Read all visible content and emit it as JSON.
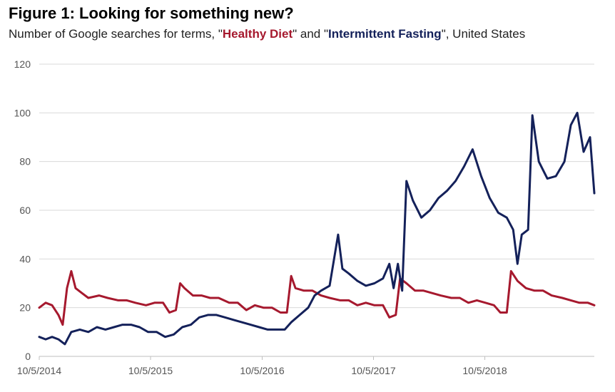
{
  "figure": {
    "title": "Figure 1:  Looking for something new?",
    "subtitle_prefix": "Number of Google searches for terms, \"",
    "subtitle_mid": "\" and \"",
    "subtitle_suffix": "\", United States"
  },
  "chart_data": {
    "type": "line",
    "ylim": [
      0,
      120
    ],
    "yticks": [
      0,
      20,
      40,
      60,
      80,
      100,
      120
    ],
    "xticks": [
      "10/5/2014",
      "10/5/2015",
      "10/5/2016",
      "10/5/2017",
      "10/5/2018"
    ],
    "x_range": [
      "2014-10-05",
      "2019-09-29"
    ],
    "grid": "horizontal",
    "series": [
      {
        "name": "Healthy Diet",
        "color": "#a6192e",
        "points": [
          [
            "2014-10-05",
            20
          ],
          [
            "2014-10-26",
            22
          ],
          [
            "2014-11-16",
            21
          ],
          [
            "2014-12-07",
            17
          ],
          [
            "2014-12-21",
            13
          ],
          [
            "2015-01-04",
            28
          ],
          [
            "2015-01-18",
            35
          ],
          [
            "2015-02-01",
            28
          ],
          [
            "2015-02-22",
            26
          ],
          [
            "2015-03-15",
            24
          ],
          [
            "2015-04-19",
            25
          ],
          [
            "2015-05-17",
            24
          ],
          [
            "2015-06-21",
            23
          ],
          [
            "2015-07-19",
            23
          ],
          [
            "2015-08-16",
            22
          ],
          [
            "2015-09-20",
            21
          ],
          [
            "2015-10-18",
            22
          ],
          [
            "2015-11-15",
            22
          ],
          [
            "2015-12-06",
            18
          ],
          [
            "2015-12-27",
            19
          ],
          [
            "2016-01-10",
            30
          ],
          [
            "2016-01-24",
            28
          ],
          [
            "2016-02-21",
            25
          ],
          [
            "2016-03-20",
            25
          ],
          [
            "2016-04-17",
            24
          ],
          [
            "2016-05-15",
            24
          ],
          [
            "2016-06-19",
            22
          ],
          [
            "2016-07-17",
            22
          ],
          [
            "2016-08-14",
            19
          ],
          [
            "2016-09-11",
            21
          ],
          [
            "2016-10-09",
            20
          ],
          [
            "2016-11-06",
            20
          ],
          [
            "2016-12-04",
            18
          ],
          [
            "2016-12-25",
            18
          ],
          [
            "2017-01-08",
            33
          ],
          [
            "2017-01-22",
            28
          ],
          [
            "2017-02-19",
            27
          ],
          [
            "2017-03-19",
            27
          ],
          [
            "2017-04-16",
            25
          ],
          [
            "2017-05-14",
            24
          ],
          [
            "2017-06-18",
            23
          ],
          [
            "2017-07-16",
            23
          ],
          [
            "2017-08-13",
            21
          ],
          [
            "2017-09-10",
            22
          ],
          [
            "2017-10-08",
            21
          ],
          [
            "2017-11-05",
            21
          ],
          [
            "2017-11-26",
            16
          ],
          [
            "2017-12-17",
            17
          ],
          [
            "2017-12-31",
            32
          ],
          [
            "2018-01-21",
            30
          ],
          [
            "2018-02-18",
            27
          ],
          [
            "2018-03-18",
            27
          ],
          [
            "2018-04-15",
            26
          ],
          [
            "2018-05-13",
            25
          ],
          [
            "2018-06-17",
            24
          ],
          [
            "2018-07-15",
            24
          ],
          [
            "2018-08-12",
            22
          ],
          [
            "2018-09-09",
            23
          ],
          [
            "2018-10-07",
            22
          ],
          [
            "2018-11-04",
            21
          ],
          [
            "2018-11-25",
            18
          ],
          [
            "2018-12-16",
            18
          ],
          [
            "2018-12-30",
            35
          ],
          [
            "2019-01-20",
            31
          ],
          [
            "2019-02-17",
            28
          ],
          [
            "2019-03-17",
            27
          ],
          [
            "2019-04-14",
            27
          ],
          [
            "2019-05-12",
            25
          ],
          [
            "2019-06-16",
            24
          ],
          [
            "2019-07-14",
            23
          ],
          [
            "2019-08-11",
            22
          ],
          [
            "2019-09-08",
            22
          ],
          [
            "2019-09-29",
            21
          ]
        ]
      },
      {
        "name": "Intermittent Fasting",
        "color": "#14215a",
        "points": [
          [
            "2014-10-05",
            8
          ],
          [
            "2014-10-26",
            7
          ],
          [
            "2014-11-16",
            8
          ],
          [
            "2014-12-07",
            7
          ],
          [
            "2014-12-28",
            5
          ],
          [
            "2015-01-18",
            10
          ],
          [
            "2015-02-15",
            11
          ],
          [
            "2015-03-15",
            10
          ],
          [
            "2015-04-12",
            12
          ],
          [
            "2015-05-10",
            11
          ],
          [
            "2015-06-07",
            12
          ],
          [
            "2015-07-05",
            13
          ],
          [
            "2015-08-02",
            13
          ],
          [
            "2015-08-30",
            12
          ],
          [
            "2015-09-27",
            10
          ],
          [
            "2015-10-25",
            10
          ],
          [
            "2015-11-22",
            8
          ],
          [
            "2015-12-20",
            9
          ],
          [
            "2016-01-17",
            12
          ],
          [
            "2016-02-14",
            13
          ],
          [
            "2016-03-13",
            16
          ],
          [
            "2016-04-10",
            17
          ],
          [
            "2016-05-08",
            17
          ],
          [
            "2016-06-05",
            16
          ],
          [
            "2016-07-03",
            15
          ],
          [
            "2016-07-31",
            14
          ],
          [
            "2016-08-28",
            13
          ],
          [
            "2016-09-25",
            12
          ],
          [
            "2016-10-23",
            11
          ],
          [
            "2016-11-20",
            11
          ],
          [
            "2016-12-18",
            11
          ],
          [
            "2017-01-08",
            14
          ],
          [
            "2017-02-05",
            17
          ],
          [
            "2017-03-05",
            20
          ],
          [
            "2017-03-26",
            25
          ],
          [
            "2017-04-16",
            27
          ],
          [
            "2017-05-14",
            29
          ],
          [
            "2017-06-11",
            50
          ],
          [
            "2017-06-25",
            36
          ],
          [
            "2017-07-16",
            34
          ],
          [
            "2017-08-13",
            31
          ],
          [
            "2017-09-10",
            29
          ],
          [
            "2017-10-08",
            30
          ],
          [
            "2017-11-05",
            32
          ],
          [
            "2017-11-26",
            38
          ],
          [
            "2017-12-10",
            28
          ],
          [
            "2017-12-24",
            38
          ],
          [
            "2018-01-07",
            27
          ],
          [
            "2018-01-21",
            72
          ],
          [
            "2018-02-11",
            64
          ],
          [
            "2018-03-11",
            57
          ],
          [
            "2018-04-08",
            60
          ],
          [
            "2018-05-06",
            65
          ],
          [
            "2018-06-03",
            68
          ],
          [
            "2018-07-01",
            72
          ],
          [
            "2018-07-29",
            78
          ],
          [
            "2018-08-26",
            85
          ],
          [
            "2018-09-23",
            74
          ],
          [
            "2018-10-21",
            65
          ],
          [
            "2018-11-18",
            59
          ],
          [
            "2018-12-16",
            57
          ],
          [
            "2019-01-06",
            52
          ],
          [
            "2019-01-20",
            38
          ],
          [
            "2019-02-03",
            50
          ],
          [
            "2019-02-24",
            52
          ],
          [
            "2019-03-10",
            99
          ],
          [
            "2019-03-31",
            80
          ],
          [
            "2019-04-28",
            73
          ],
          [
            "2019-05-26",
            74
          ],
          [
            "2019-06-23",
            80
          ],
          [
            "2019-07-14",
            95
          ],
          [
            "2019-08-04",
            100
          ],
          [
            "2019-08-25",
            84
          ],
          [
            "2019-09-15",
            90
          ],
          [
            "2019-09-29",
            67
          ]
        ]
      }
    ]
  }
}
